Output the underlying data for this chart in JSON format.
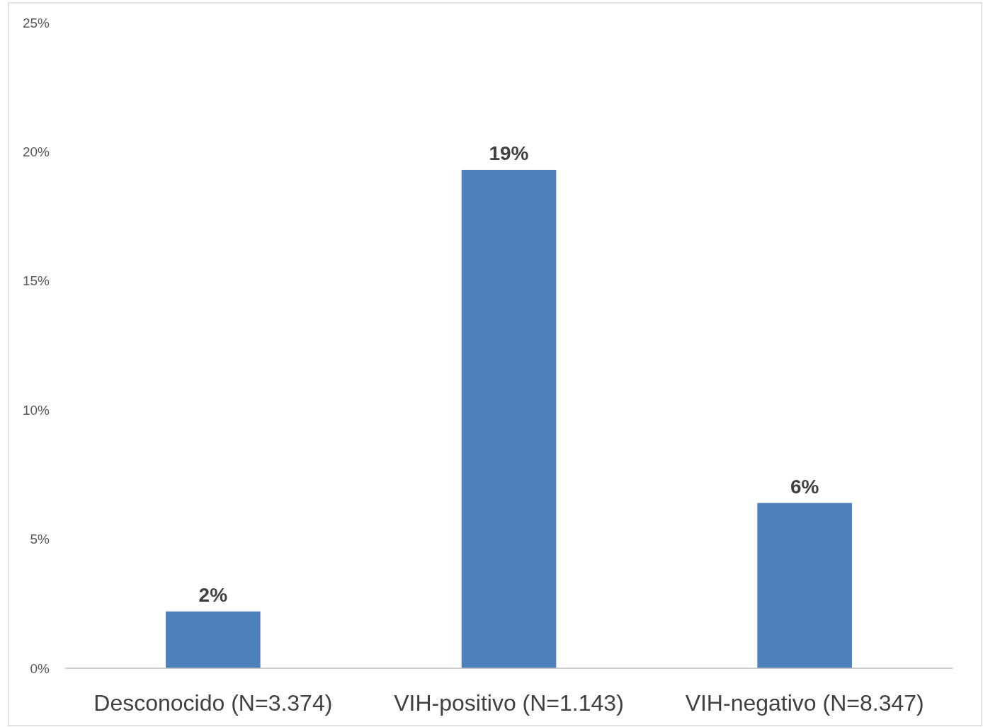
{
  "chart_data": {
    "type": "bar",
    "categories": [
      "Desconocido (N=3.374)",
      "VIH-positivo (N=1.143)",
      "VIH-negativo (N=8.347)"
    ],
    "values": [
      2.2,
      19.3,
      6.4
    ],
    "value_labels": [
      "2%",
      "19%",
      "6%"
    ],
    "color": "#4f81bd",
    "ylim": [
      0,
      25
    ],
    "yticks": [
      {
        "value": 0,
        "label": "0%"
      },
      {
        "value": 5,
        "label": "5%"
      },
      {
        "value": 10,
        "label": "10%"
      },
      {
        "value": 15,
        "label": "15%"
      },
      {
        "value": 20,
        "label": "20%"
      },
      {
        "value": 25,
        "label": "25%"
      }
    ],
    "grid": false
  }
}
